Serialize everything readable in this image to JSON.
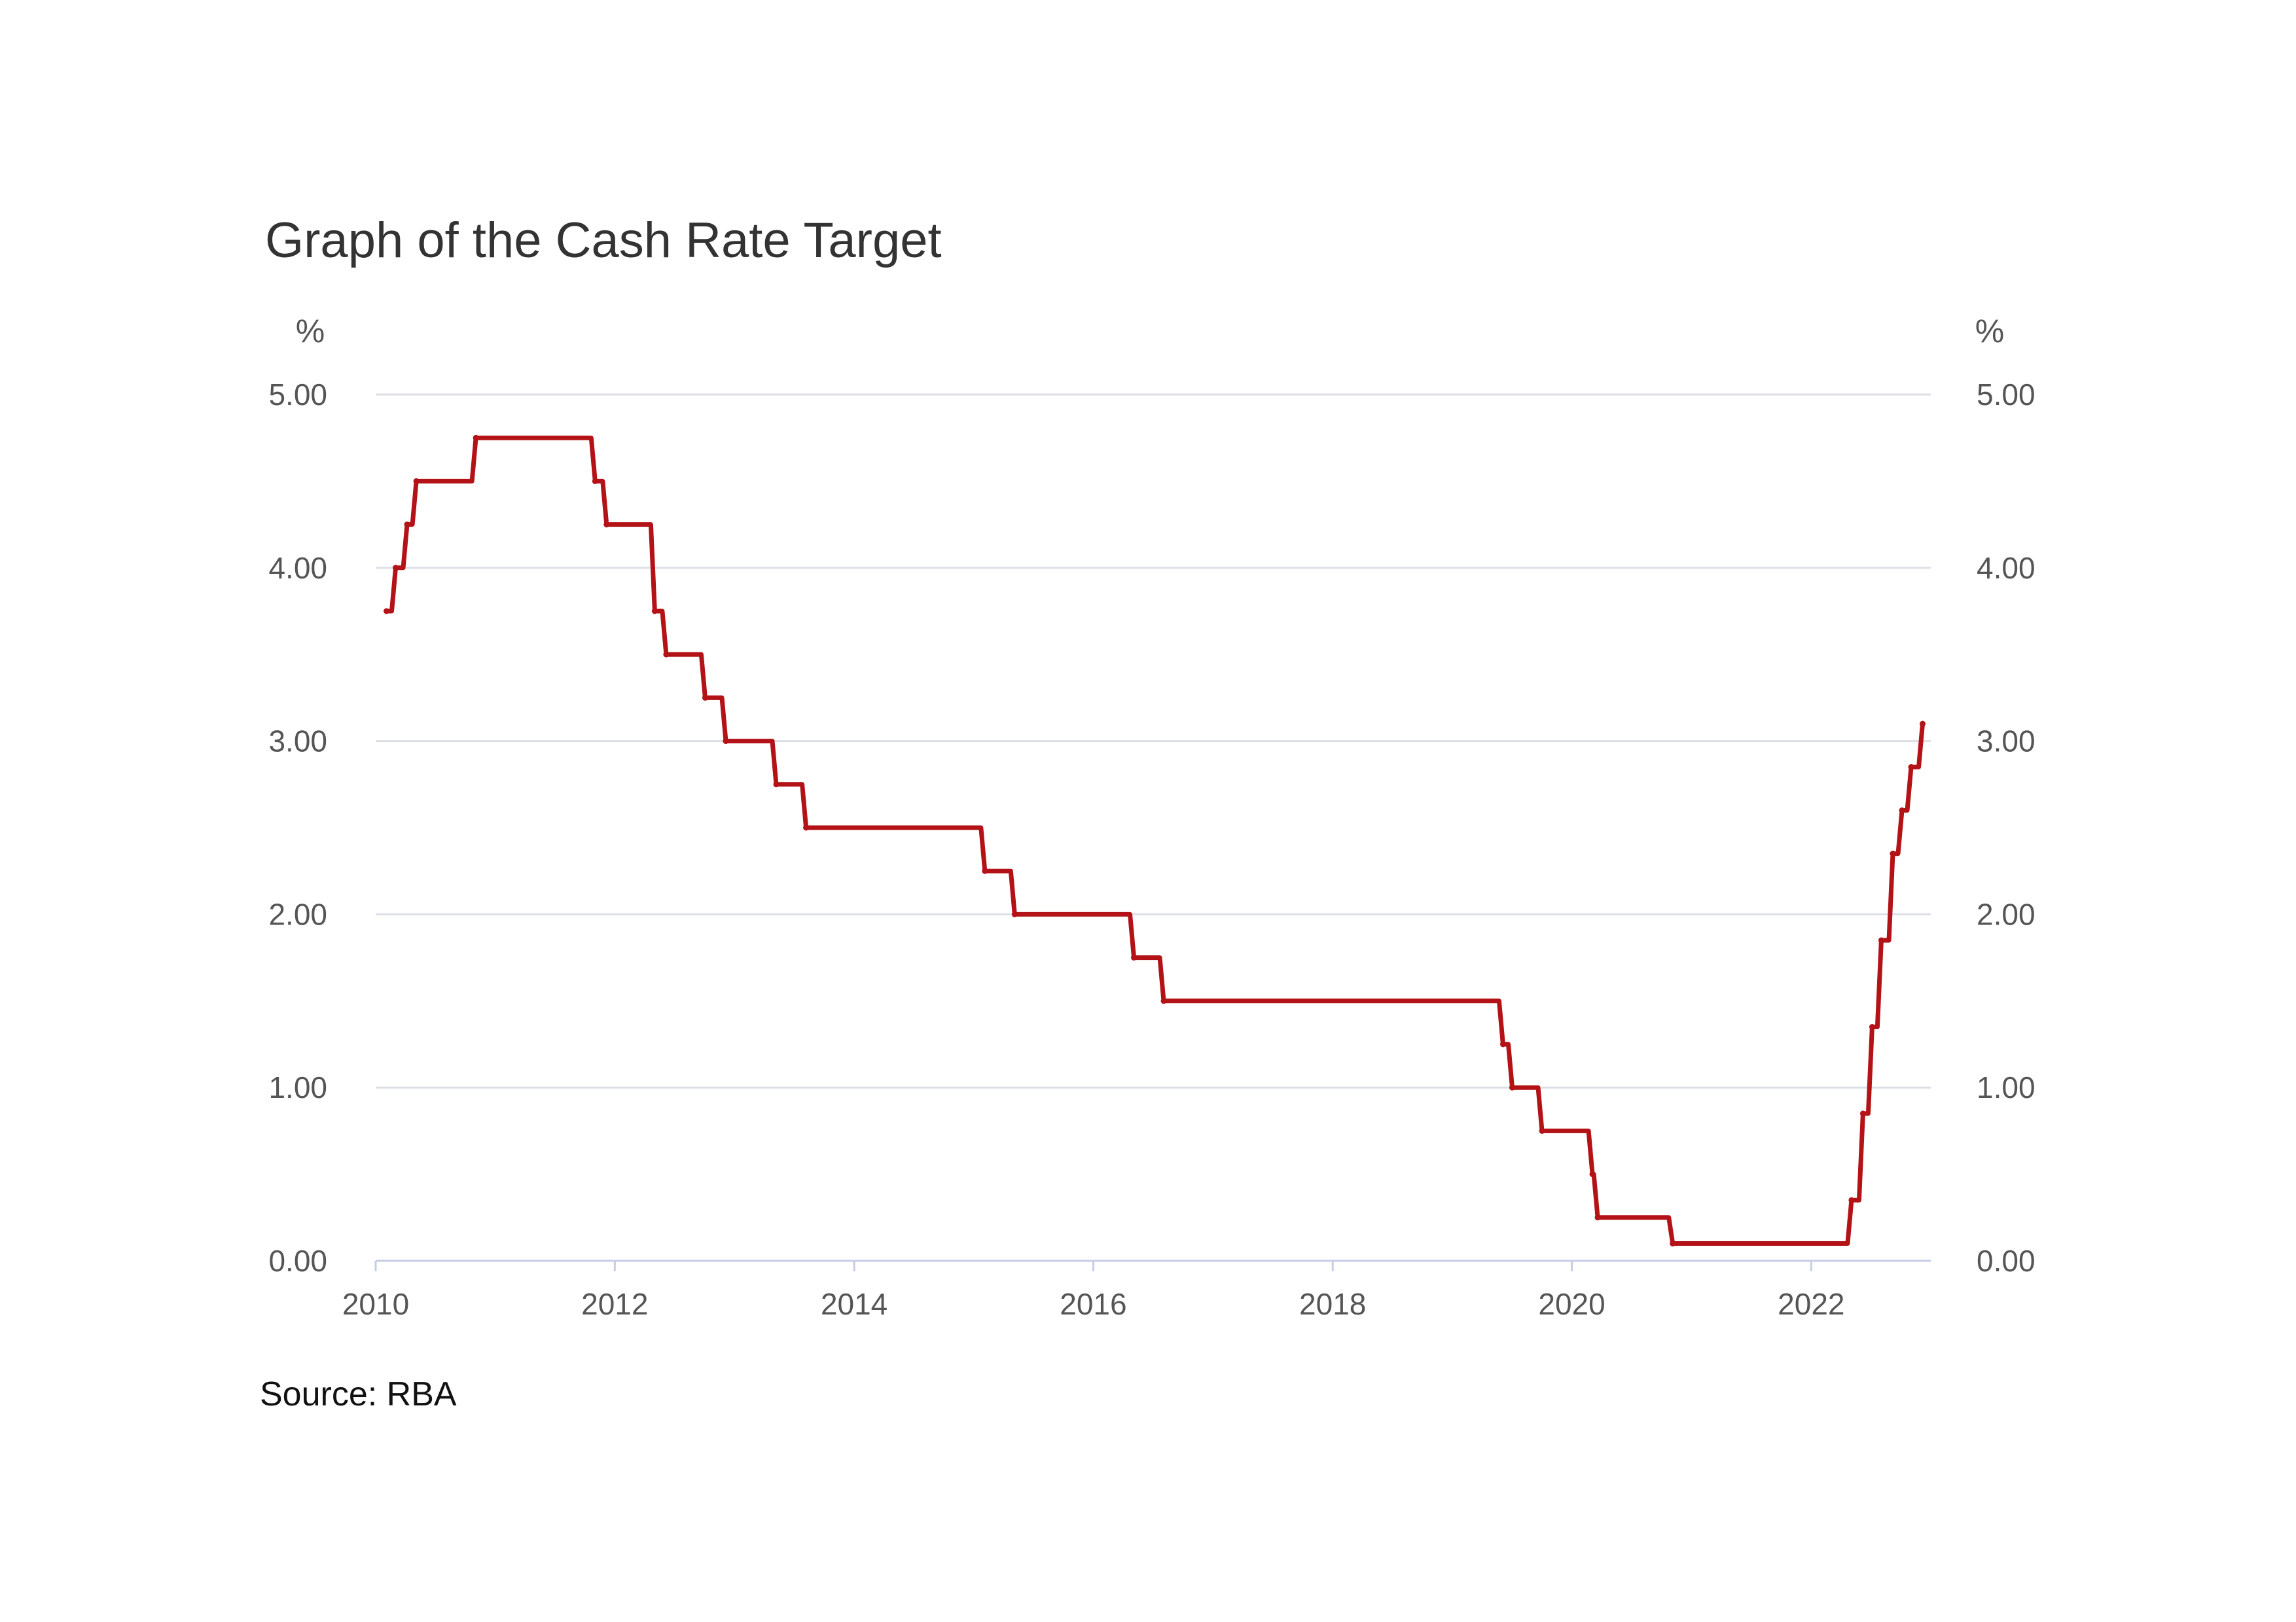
{
  "chart_data": {
    "type": "line",
    "title": "Graph of the Cash Rate Target",
    "y_unit_left": "%",
    "y_unit_right": "%",
    "source": "Source: RBA",
    "ylim": [
      0,
      5
    ],
    "xlim": [
      "2010-01-01",
      "2023-01-01"
    ],
    "grid": true,
    "line_color": "#b31217",
    "y_ticks": [
      "0.00",
      "1.00",
      "2.00",
      "3.00",
      "4.00",
      "5.00"
    ],
    "x_ticks": [
      "2010",
      "2012",
      "2014",
      "2016",
      "2018",
      "2020",
      "2022"
    ],
    "series": [
      {
        "x": [
          "2010-02-03",
          "2010-03-03",
          "2010-04-07",
          "2010-05-05",
          "2010-11-03",
          "2011-11-02",
          "2011-12-07",
          "2012-05-02",
          "2012-06-06",
          "2012-10-03",
          "2012-12-05",
          "2013-05-08",
          "2013-08-07",
          "2015-02-04",
          "2015-05-06",
          "2016-05-04",
          "2016-08-03",
          "2019-06-05",
          "2019-07-03",
          "2019-10-02",
          "2020-03-04",
          "2020-03-20",
          "2020-11-04",
          "2022-05-04",
          "2022-06-08",
          "2022-07-06",
          "2022-08-03",
          "2022-09-07",
          "2022-10-05",
          "2022-11-02",
          "2022-12-07"
        ],
        "values": [
          3.75,
          4.0,
          4.25,
          4.5,
          4.75,
          4.5,
          4.25,
          3.75,
          3.5,
          3.25,
          3.0,
          2.75,
          2.5,
          2.25,
          2.0,
          1.75,
          1.5,
          1.25,
          1.0,
          0.75,
          0.5,
          0.25,
          0.1,
          0.35,
          0.85,
          1.35,
          1.85,
          2.35,
          2.6,
          2.85,
          3.1
        ]
      }
    ]
  }
}
